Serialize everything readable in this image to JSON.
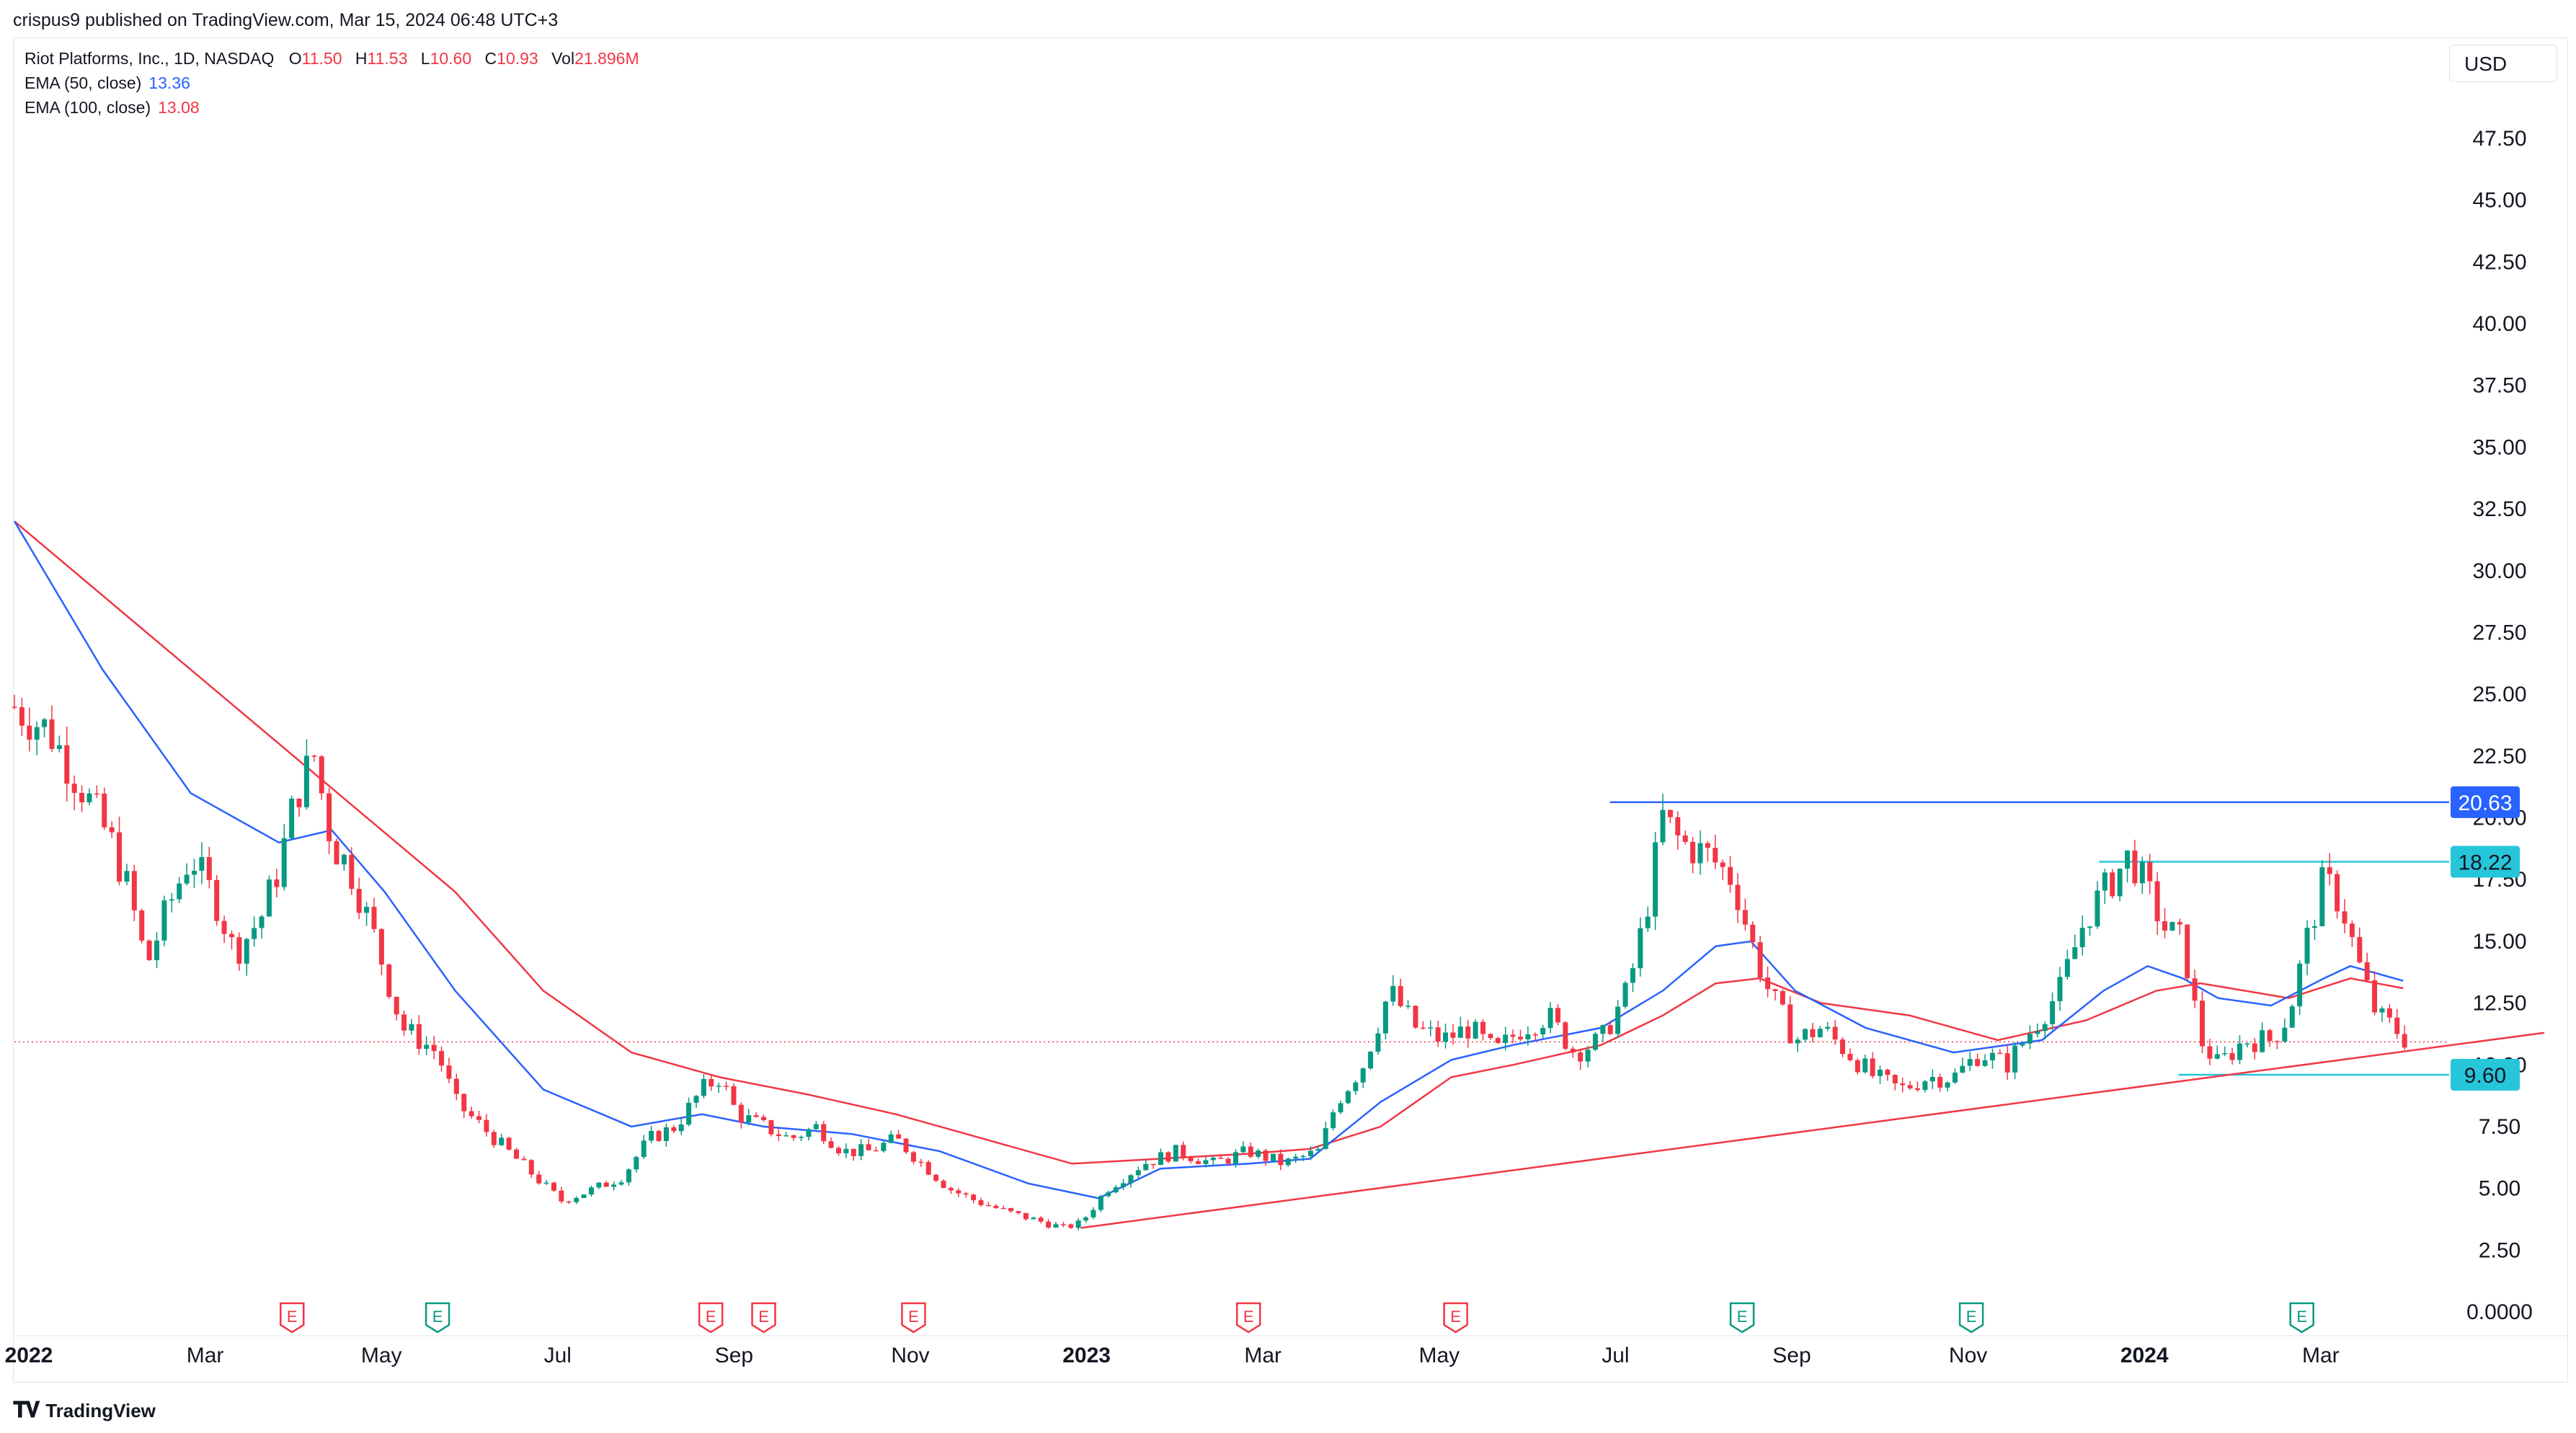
{
  "publisher": "crispus9 published on TradingView.com, Mar 15, 2024 06:48 UTC+3",
  "symbol": "Riot Platforms, Inc., 1D, NASDAQ",
  "ohlc": {
    "O": "11.50",
    "H": "11.53",
    "L": "10.60",
    "C": "10.93",
    "Vol": "21.896M"
  },
  "ema50": {
    "label": "EMA (50, close)",
    "value": "13.36",
    "color": "#2962ff"
  },
  "ema100": {
    "label": "EMA (100, close)",
    "value": "13.08",
    "color": "#f23645"
  },
  "currency": "USD",
  "brand": "TradingView",
  "colors": {
    "up": "#089981",
    "down": "#f23645",
    "resistance": "#2962ff",
    "resistance2": "#26c6da",
    "trendline": "#f23645"
  },
  "chart_data": {
    "type": "line",
    "title": "Riot Platforms, Inc., 1D, NASDAQ",
    "ylim": [
      0,
      50
    ],
    "y_ticks": [
      "0.0000",
      "2.50",
      "5.00",
      "7.50",
      "10.00",
      "12.50",
      "15.00",
      "17.50",
      "20.00",
      "22.50",
      "25.00",
      "27.50",
      "30.00",
      "32.50",
      "35.00",
      "37.50",
      "40.00",
      "42.50",
      "45.00",
      "47.50"
    ],
    "x_ticks": [
      {
        "label": "2022",
        "t": 0,
        "bold": true
      },
      {
        "label": "Mar",
        "t": 2,
        "bold": false
      },
      {
        "label": "May",
        "t": 4,
        "bold": false
      },
      {
        "label": "Jul",
        "t": 6,
        "bold": false
      },
      {
        "label": "Sep",
        "t": 8,
        "bold": false
      },
      {
        "label": "Nov",
        "t": 10,
        "bold": false
      },
      {
        "label": "2023",
        "t": 12,
        "bold": true
      },
      {
        "label": "Mar",
        "t": 14,
        "bold": false
      },
      {
        "label": "May",
        "t": 16,
        "bold": false
      },
      {
        "label": "Jul",
        "t": 18,
        "bold": false
      },
      {
        "label": "Sep",
        "t": 20,
        "bold": false
      },
      {
        "label": "Nov",
        "t": 22,
        "bold": false
      },
      {
        "label": "2024",
        "t": 24,
        "bold": true
      },
      {
        "label": "Mar",
        "t": 26,
        "bold": false
      }
    ],
    "x_range_months": [
      0,
      28.9
    ],
    "price_series": {
      "name": "",
      "points": [
        [
          0,
          24.5
        ],
        [
          0.4,
          23.5
        ],
        [
          0.8,
          21
        ],
        [
          1.1,
          19
        ],
        [
          1.3,
          17
        ],
        [
          1.5,
          14
        ],
        [
          1.7,
          16
        ],
        [
          2.0,
          18.5
        ],
        [
          2.3,
          16.5
        ],
        [
          2.5,
          14.5
        ],
        [
          2.8,
          16
        ],
        [
          3.0,
          18
        ],
        [
          3.2,
          21
        ],
        [
          3.4,
          22.5
        ],
        [
          3.6,
          19
        ],
        [
          3.8,
          18
        ],
        [
          4.1,
          15
        ],
        [
          4.4,
          11.5
        ],
        [
          4.8,
          10.5
        ],
        [
          5.0,
          8.5
        ],
        [
          5.3,
          7.5
        ],
        [
          5.6,
          6.5
        ],
        [
          5.9,
          5.5
        ],
        [
          6.2,
          4.5
        ],
        [
          6.6,
          5
        ],
        [
          6.9,
          5.5
        ],
        [
          7.2,
          7
        ],
        [
          7.5,
          7.5
        ],
        [
          7.8,
          9
        ],
        [
          8.0,
          9.5
        ],
        [
          8.2,
          8
        ],
        [
          8.5,
          7.5
        ],
        [
          8.8,
          7
        ],
        [
          9.1,
          7.5
        ],
        [
          9.4,
          6.5
        ],
        [
          9.7,
          6.5
        ],
        [
          10.0,
          7
        ],
        [
          10.3,
          6
        ],
        [
          10.6,
          5
        ],
        [
          10.9,
          4.5
        ],
        [
          11.3,
          4
        ],
        [
          11.6,
          3.7
        ],
        [
          11.9,
          3.4
        ],
        [
          12.1,
          3.6
        ],
        [
          12.4,
          5
        ],
        [
          12.8,
          6
        ],
        [
          13.2,
          6.5
        ],
        [
          13.6,
          6
        ],
        [
          14.0,
          6.5
        ],
        [
          14.4,
          6
        ],
        [
          14.8,
          6.5
        ],
        [
          15.0,
          8.5
        ],
        [
          15.3,
          10
        ],
        [
          15.6,
          13
        ],
        [
          15.9,
          11.5
        ],
        [
          16.2,
          11
        ],
        [
          16.5,
          11.5
        ],
        [
          16.8,
          10.5
        ],
        [
          17.1,
          11.5
        ],
        [
          17.4,
          12
        ],
        [
          17.7,
          10.5
        ],
        [
          18.0,
          11
        ],
        [
          18.3,
          13
        ],
        [
          18.5,
          16
        ],
        [
          18.7,
          20
        ],
        [
          18.9,
          19
        ],
        [
          19.2,
          18.5
        ],
        [
          19.5,
          17.5
        ],
        [
          19.7,
          15
        ],
        [
          19.9,
          13
        ],
        [
          20.2,
          11
        ],
        [
          20.5,
          11.5
        ],
        [
          20.8,
          10.5
        ],
        [
          21.1,
          9.5
        ],
        [
          21.4,
          9
        ],
        [
          21.7,
          9.5
        ],
        [
          22.0,
          9.5
        ],
        [
          22.3,
          10.5
        ],
        [
          22.6,
          10
        ],
        [
          22.9,
          11.5
        ],
        [
          23.2,
          13
        ],
        [
          23.5,
          16
        ],
        [
          23.8,
          17.5
        ],
        [
          24.0,
          18.5
        ],
        [
          24.2,
          17
        ],
        [
          24.4,
          15.5
        ],
        [
          24.6,
          15
        ],
        [
          24.8,
          11
        ],
        [
          25.0,
          10
        ],
        [
          25.3,
          11
        ],
        [
          25.6,
          11
        ],
        [
          25.8,
          12
        ],
        [
          26.0,
          15
        ],
        [
          26.2,
          17.5
        ],
        [
          26.4,
          16.5
        ],
        [
          26.6,
          14
        ],
        [
          26.8,
          12
        ],
        [
          27.0,
          11.5
        ],
        [
          27.15,
          10.93
        ]
      ]
    },
    "ema50_series": {
      "name": "EMA (50, close)",
      "points": [
        [
          0,
          32
        ],
        [
          1,
          26
        ],
        [
          2,
          21
        ],
        [
          3,
          19
        ],
        [
          3.6,
          19.5
        ],
        [
          4.2,
          17
        ],
        [
          5,
          13
        ],
        [
          6,
          9
        ],
        [
          7,
          7.5
        ],
        [
          7.8,
          8
        ],
        [
          8.5,
          7.5
        ],
        [
          9.5,
          7.2
        ],
        [
          10.5,
          6.5
        ],
        [
          11.5,
          5.2
        ],
        [
          12.3,
          4.6
        ],
        [
          13,
          5.8
        ],
        [
          14,
          6
        ],
        [
          14.7,
          6.2
        ],
        [
          15.5,
          8.5
        ],
        [
          16.3,
          10.2
        ],
        [
          17,
          10.8
        ],
        [
          18,
          11.5
        ],
        [
          18.7,
          13
        ],
        [
          19.3,
          14.8
        ],
        [
          19.7,
          15
        ],
        [
          20.2,
          13
        ],
        [
          21,
          11.5
        ],
        [
          22,
          10.5
        ],
        [
          23,
          11
        ],
        [
          23.7,
          13
        ],
        [
          24.2,
          14
        ],
        [
          24.6,
          13.5
        ],
        [
          25,
          12.7
        ],
        [
          25.6,
          12.4
        ],
        [
          26.2,
          13.5
        ],
        [
          26.5,
          14
        ],
        [
          27.1,
          13.4
        ]
      ]
    },
    "ema100_series": {
      "name": "EMA (100, close)",
      "points": [
        [
          0,
          32
        ],
        [
          1.5,
          27.5
        ],
        [
          3,
          23
        ],
        [
          4,
          20
        ],
        [
          5,
          17
        ],
        [
          6,
          13
        ],
        [
          7,
          10.5
        ],
        [
          8,
          9.5
        ],
        [
          9,
          8.8
        ],
        [
          10,
          8
        ],
        [
          11,
          7
        ],
        [
          12,
          6
        ],
        [
          13,
          6.2
        ],
        [
          14,
          6.4
        ],
        [
          14.7,
          6.6
        ],
        [
          15.5,
          7.5
        ],
        [
          16.3,
          9.5
        ],
        [
          17,
          10
        ],
        [
          18,
          10.8
        ],
        [
          18.7,
          12
        ],
        [
          19.3,
          13.3
        ],
        [
          19.8,
          13.5
        ],
        [
          20.5,
          12.5
        ],
        [
          21.5,
          12
        ],
        [
          22.5,
          11
        ],
        [
          23.5,
          11.8
        ],
        [
          24.3,
          13
        ],
        [
          24.8,
          13.3
        ],
        [
          25.3,
          13
        ],
        [
          25.8,
          12.7
        ],
        [
          26.5,
          13.5
        ],
        [
          27.1,
          13.1
        ]
      ]
    },
    "trendline": {
      "start": [
        12.1,
        3.4
      ],
      "end": [
        28.7,
        11.3
      ]
    },
    "current_price_line": 10.93,
    "levels": [
      {
        "label": "20.63",
        "value": 20.63,
        "from_t": 18.1,
        "color": "#2962ff",
        "text_color": "#ffffff"
      },
      {
        "label": "18.22",
        "value": 18.22,
        "from_t": 23.65,
        "color": "#26c6da",
        "text_color": "#131722"
      },
      {
        "label": "9.60",
        "value": 9.6,
        "from_t": 24.55,
        "color": "#26c6da",
        "text_color": "#131722"
      }
    ],
    "event_markers": [
      {
        "label": "E",
        "t": 3.15,
        "kind": "earnings"
      },
      {
        "label": "E",
        "t": 4.8,
        "kind": "dividend"
      },
      {
        "label": "E",
        "t": 7.9,
        "kind": "earnings"
      },
      {
        "label": "E",
        "t": 8.5,
        "kind": "earnings"
      },
      {
        "label": "E",
        "t": 10.2,
        "kind": "earnings"
      },
      {
        "label": "E",
        "t": 14.0,
        "kind": "earnings"
      },
      {
        "label": "E",
        "t": 16.35,
        "kind": "earnings"
      },
      {
        "label": "E",
        "t": 19.6,
        "kind": "dividend"
      },
      {
        "label": "E",
        "t": 22.2,
        "kind": "dividend"
      },
      {
        "label": "E",
        "t": 25.95,
        "kind": "dividend"
      }
    ]
  }
}
